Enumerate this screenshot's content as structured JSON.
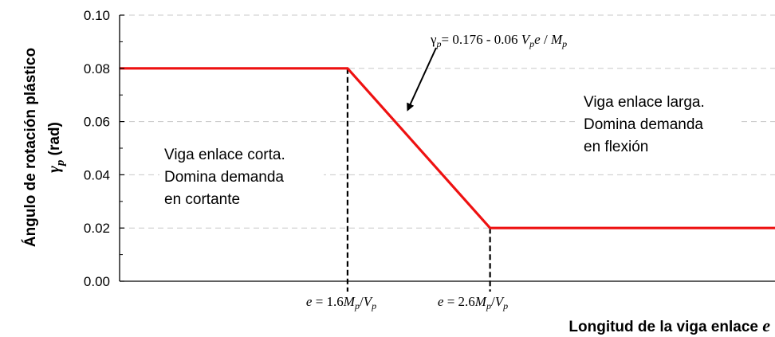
{
  "chart_data": {
    "type": "line",
    "xlabel": "Longitud de la viga enlace",
    "xlabel_var": "e",
    "ylabel": "Ángulo de rotación plástico",
    "ylabel_symbol": "γ",
    "ylabel_symbol_sub": "p",
    "ylabel_unit": "(rad)",
    "ylim": [
      0,
      0.1
    ],
    "yticks": [
      "0.00",
      "0.02",
      "0.04",
      "0.06",
      "0.08",
      "0.10"
    ],
    "grid": "horizontal dashed",
    "xlim": [
      0,
      4.6
    ],
    "series": [
      {
        "x": [
          0,
          1.6,
          2.6,
          4.6
        ],
        "y": [
          0.08,
          0.08,
          0.02,
          0.02
        ],
        "color": "#ee1111"
      }
    ],
    "reference_lines": [
      {
        "x": 1.6,
        "label": {
          "lhs": "e",
          "eq": " = 1.6",
          "M": "M",
          "Msub": "p",
          "slash": "/",
          "V": "V",
          "Vsub": "p"
        }
      },
      {
        "x": 2.6,
        "label": {
          "lhs": "e",
          "eq": " = 2.6",
          "M": "M",
          "Msub": "p",
          "slash": "/",
          "V": "V",
          "Vsub": "p"
        }
      }
    ],
    "annotations": {
      "equation": {
        "g": "γ",
        "gsub": "p",
        "eq": "= 0.176 - 0.06 ",
        "V": "V",
        "Vsub": "p",
        "e": "e",
        "slash": " / ",
        "M": "M",
        "Msub": "p",
        "arrow_to": [
          2.0,
          0.065
        ]
      },
      "short_link": [
        "Viga enlace corta.",
        "Domina demanda",
        "en cortante"
      ],
      "long_link": [
        "Viga enlace larga.",
        "Domina demanda",
        "en flexión"
      ]
    }
  }
}
